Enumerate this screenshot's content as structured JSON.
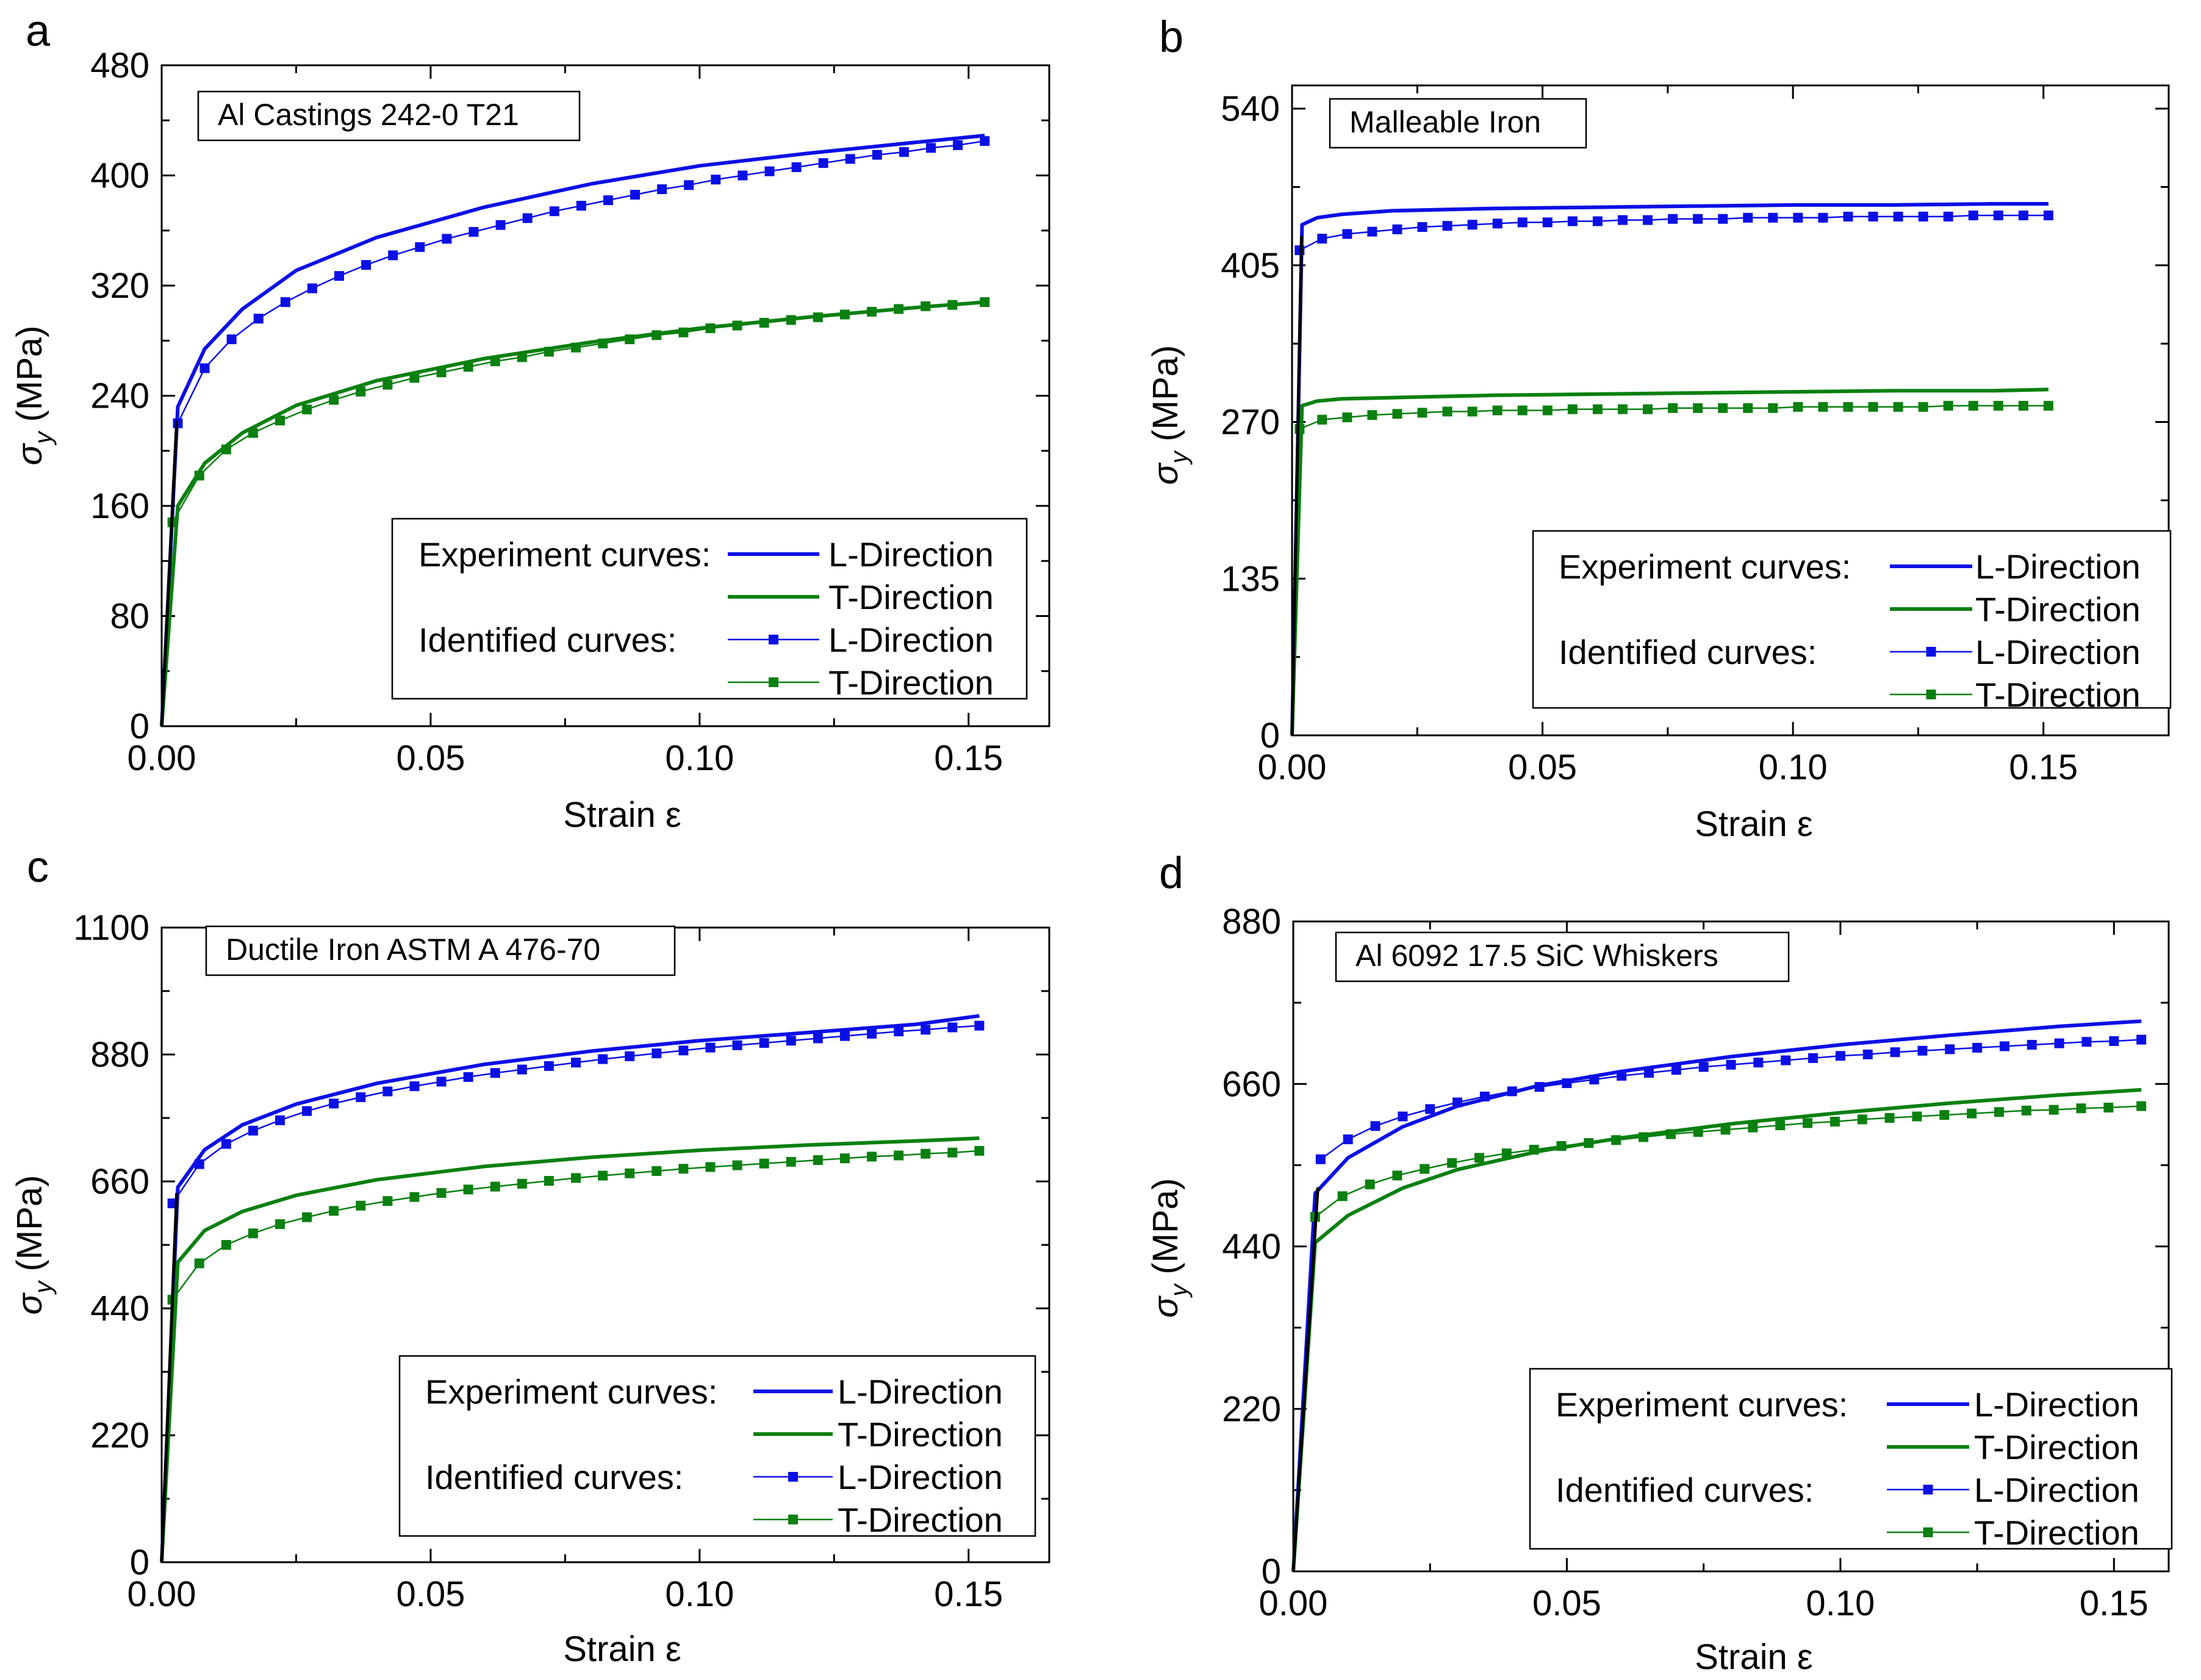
{
  "figure": {
    "panels": [
      "a",
      "b",
      "c",
      "d"
    ]
  },
  "colors": {
    "l_direction": "#0b0fe6",
    "t_direction": "#0a8010",
    "elastic": "#000000",
    "axis": "#000000"
  },
  "legend_labels": {
    "experiment": "Experiment curves:",
    "identified": "Identified curves:",
    "l_dir": "L-Direction",
    "t_dir": "T-Direction"
  },
  "chart_data": [
    {
      "panel": "a",
      "type": "line",
      "sample_label": "Al Castings 242-0 T21",
      "xlabel": "Strain ε",
      "ylabel": "σ_y (MPa)",
      "xlim": [
        0,
        0.165
      ],
      "ylim": [
        0,
        480
      ],
      "xticks": [
        0.0,
        0.05,
        0.1,
        0.15
      ],
      "xtick_labels": [
        "0.00",
        "0.05",
        "0.10",
        "0.15"
      ],
      "yticks": [
        0,
        80,
        160,
        240,
        320,
        400,
        480
      ],
      "ytick_labels": [
        "0",
        "80",
        "160",
        "240",
        "320",
        "400",
        "480"
      ],
      "series": [
        {
          "name": "Experiment L-Direction",
          "kind": "experiment",
          "color_key": "l_direction",
          "x": [
            0.0,
            0.003,
            0.008,
            0.015,
            0.025,
            0.04,
            0.06,
            0.08,
            0.1,
            0.12,
            0.14,
            0.153
          ],
          "y": [
            0,
            232,
            274,
            303,
            331,
            355,
            377,
            394,
            407,
            416,
            424,
            429
          ]
        },
        {
          "name": "Experiment T-Direction",
          "kind": "experiment",
          "color_key": "t_direction",
          "x": [
            0.0,
            0.003,
            0.008,
            0.015,
            0.025,
            0.04,
            0.06,
            0.08,
            0.1,
            0.12,
            0.14,
            0.153
          ],
          "y": [
            0,
            160,
            191,
            213,
            233,
            251,
            267,
            279,
            289,
            297,
            304,
            308
          ]
        },
        {
          "name": "Identified L-Direction",
          "kind": "identified",
          "color_key": "l_direction",
          "x": [
            0.003,
            0.008,
            0.013,
            0.018,
            0.023,
            0.028,
            0.033,
            0.038,
            0.043,
            0.048,
            0.053,
            0.058,
            0.063,
            0.068,
            0.073,
            0.078,
            0.083,
            0.088,
            0.093,
            0.098,
            0.103,
            0.108,
            0.113,
            0.118,
            0.123,
            0.128,
            0.133,
            0.138,
            0.143,
            0.148,
            0.153
          ],
          "y": [
            220,
            260,
            281,
            296,
            308,
            318,
            327,
            335,
            342,
            348,
            354,
            359,
            364,
            369,
            374,
            378,
            382,
            386,
            390,
            393,
            397,
            400,
            403,
            406,
            409,
            412,
            415,
            417,
            420,
            422,
            425
          ]
        },
        {
          "name": "Identified T-Direction",
          "kind": "identified",
          "color_key": "t_direction",
          "x": [
            0.002,
            0.007,
            0.012,
            0.017,
            0.022,
            0.027,
            0.032,
            0.037,
            0.042,
            0.047,
            0.052,
            0.057,
            0.062,
            0.067,
            0.072,
            0.077,
            0.082,
            0.087,
            0.092,
            0.097,
            0.102,
            0.107,
            0.112,
            0.117,
            0.122,
            0.127,
            0.132,
            0.137,
            0.142,
            0.147,
            0.153
          ],
          "y": [
            148,
            182,
            201,
            213,
            222,
            230,
            237,
            243,
            248,
            253,
            257,
            261,
            265,
            268,
            272,
            275,
            278,
            281,
            284,
            286,
            289,
            291,
            293,
            295,
            297,
            299,
            301,
            303,
            305,
            306,
            308
          ]
        },
        {
          "name": "Elastic",
          "kind": "elastic",
          "color_key": "elastic",
          "x": [
            0.0,
            0.0028
          ],
          "y": [
            0,
            222
          ]
        }
      ]
    },
    {
      "panel": "b",
      "type": "line",
      "sample_label": "Malleable Iron",
      "xlabel": "Strain ε",
      "ylabel": "σ_y (MPa)",
      "xlim": [
        0,
        0.175
      ],
      "ylim": [
        0,
        560
      ],
      "xticks": [
        0.0,
        0.05,
        0.1,
        0.15
      ],
      "xtick_labels": [
        "0.00",
        "0.05",
        "0.10",
        "0.15"
      ],
      "yticks": [
        0,
        135,
        270,
        405,
        540
      ],
      "ytick_labels": [
        "0",
        "135",
        "270",
        "405",
        "540"
      ],
      "series": [
        {
          "name": "Experiment L-Direction",
          "kind": "experiment",
          "color_key": "l_direction",
          "x": [
            0.0,
            0.002,
            0.005,
            0.01,
            0.02,
            0.04,
            0.06,
            0.08,
            0.1,
            0.12,
            0.14,
            0.151
          ],
          "y": [
            0,
            440,
            446,
            449,
            452,
            454,
            455,
            456,
            457,
            457,
            458,
            458
          ]
        },
        {
          "name": "Experiment T-Direction",
          "kind": "experiment",
          "color_key": "t_direction",
          "x": [
            0.0,
            0.002,
            0.005,
            0.01,
            0.02,
            0.04,
            0.06,
            0.08,
            0.1,
            0.12,
            0.14,
            0.151
          ],
          "y": [
            0,
            284,
            288,
            290,
            291,
            293,
            294,
            295,
            296,
            297,
            297,
            298
          ]
        },
        {
          "name": "Identified L-Direction",
          "kind": "identified",
          "color_key": "l_direction",
          "x": [
            0.0015,
            0.006,
            0.011,
            0.016,
            0.021,
            0.026,
            0.031,
            0.036,
            0.041,
            0.046,
            0.051,
            0.056,
            0.061,
            0.066,
            0.071,
            0.076,
            0.081,
            0.086,
            0.091,
            0.096,
            0.101,
            0.106,
            0.111,
            0.116,
            0.121,
            0.126,
            0.131,
            0.136,
            0.141,
            0.146,
            0.151
          ],
          "y": [
            418,
            428,
            432,
            434,
            436,
            438,
            439,
            440,
            441,
            442,
            442,
            443,
            443,
            444,
            444,
            445,
            445,
            445,
            446,
            446,
            446,
            446,
            447,
            447,
            447,
            447,
            447,
            448,
            448,
            448,
            448
          ]
        },
        {
          "name": "Identified T-Direction",
          "kind": "identified",
          "color_key": "t_direction",
          "x": [
            0.0015,
            0.006,
            0.011,
            0.016,
            0.021,
            0.026,
            0.031,
            0.036,
            0.041,
            0.046,
            0.051,
            0.056,
            0.061,
            0.066,
            0.071,
            0.076,
            0.081,
            0.086,
            0.091,
            0.096,
            0.101,
            0.106,
            0.111,
            0.116,
            0.121,
            0.126,
            0.131,
            0.136,
            0.141,
            0.146,
            0.151
          ],
          "y": [
            264,
            272,
            274,
            276,
            277,
            278,
            279,
            279,
            280,
            280,
            280,
            281,
            281,
            281,
            281,
            282,
            282,
            282,
            282,
            282,
            283,
            283,
            283,
            283,
            283,
            283,
            284,
            284,
            284,
            284,
            284
          ]
        },
        {
          "name": "Elastic",
          "kind": "elastic",
          "color_key": "elastic",
          "x": [
            0.0,
            0.0019
          ],
          "y": [
            0,
            430
          ]
        }
      ]
    },
    {
      "panel": "c",
      "type": "line",
      "sample_label": "Ductile Iron ASTM A 476-70",
      "xlabel": "Strain ε",
      "ylabel": "σ_y (MPa)",
      "xlim": [
        0,
        0.165
      ],
      "ylim": [
        0,
        1100
      ],
      "xticks": [
        0.0,
        0.05,
        0.1,
        0.15
      ],
      "xtick_labels": [
        "0.00",
        "0.05",
        "0.10",
        "0.15"
      ],
      "yticks": [
        0,
        220,
        440,
        660,
        880,
        1100
      ],
      "ytick_labels": [
        "0",
        "220",
        "440",
        "660",
        "880",
        "1100"
      ],
      "series": [
        {
          "name": "Experiment L-Direction",
          "kind": "experiment",
          "color_key": "l_direction",
          "x": [
            0.0,
            0.003,
            0.008,
            0.015,
            0.025,
            0.04,
            0.06,
            0.08,
            0.1,
            0.12,
            0.14,
            0.152
          ],
          "y": [
            0,
            650,
            715,
            758,
            794,
            830,
            863,
            886,
            904,
            918,
            932,
            947
          ]
        },
        {
          "name": "Experiment T-Direction",
          "kind": "experiment",
          "color_key": "t_direction",
          "x": [
            0.0,
            0.003,
            0.008,
            0.015,
            0.025,
            0.04,
            0.06,
            0.08,
            0.1,
            0.12,
            0.14,
            0.152
          ],
          "y": [
            0,
            520,
            575,
            608,
            636,
            663,
            686,
            702,
            714,
            723,
            730,
            735
          ]
        },
        {
          "name": "Identified L-Direction",
          "kind": "identified",
          "color_key": "l_direction",
          "x": [
            0.002,
            0.007,
            0.012,
            0.017,
            0.022,
            0.027,
            0.032,
            0.037,
            0.042,
            0.047,
            0.052,
            0.057,
            0.062,
            0.067,
            0.072,
            0.077,
            0.082,
            0.087,
            0.092,
            0.097,
            0.102,
            0.107,
            0.112,
            0.117,
            0.122,
            0.127,
            0.132,
            0.137,
            0.142,
            0.147,
            0.152
          ],
          "y": [
            622,
            690,
            725,
            748,
            766,
            782,
            795,
            806,
            816,
            825,
            833,
            841,
            848,
            854,
            860,
            866,
            872,
            877,
            882,
            887,
            892,
            896,
            900,
            904,
            908,
            912,
            916,
            920,
            923,
            927,
            930
          ]
        },
        {
          "name": "Identified T-Direction",
          "kind": "identified",
          "color_key": "t_direction",
          "x": [
            0.002,
            0.007,
            0.012,
            0.017,
            0.022,
            0.027,
            0.032,
            0.037,
            0.042,
            0.047,
            0.052,
            0.057,
            0.062,
            0.067,
            0.072,
            0.077,
            0.082,
            0.087,
            0.092,
            0.097,
            0.102,
            0.107,
            0.112,
            0.117,
            0.122,
            0.127,
            0.132,
            0.137,
            0.142,
            0.147,
            0.152
          ],
          "y": [
            455,
            518,
            550,
            570,
            586,
            598,
            609,
            618,
            626,
            633,
            640,
            646,
            651,
            656,
            661,
            666,
            670,
            674,
            678,
            682,
            685,
            688,
            691,
            694,
            697,
            700,
            703,
            705,
            708,
            710,
            713
          ]
        },
        {
          "name": "Elastic",
          "kind": "elastic",
          "color_key": "elastic",
          "x": [
            0.0,
            0.0028
          ],
          "y": [
            0,
            640
          ]
        }
      ]
    },
    {
      "panel": "d",
      "type": "line",
      "sample_label": "Al 6092 17.5 SiC Whiskers",
      "xlabel": "Strain ε",
      "ylabel": "σ_y (MPa)",
      "xlim": [
        0,
        0.16
      ],
      "ylim": [
        0,
        880
      ],
      "xticks": [
        0.0,
        0.05,
        0.1,
        0.15
      ],
      "xtick_labels": [
        "0.00",
        "0.05",
        "0.10",
        "0.15"
      ],
      "yticks": [
        0,
        220,
        440,
        660,
        880
      ],
      "ytick_labels": [
        "0",
        "220",
        "440",
        "660",
        "880"
      ],
      "series": [
        {
          "name": "Experiment L-Direction",
          "kind": "experiment",
          "color_key": "l_direction",
          "x": [
            0.0,
            0.004,
            0.01,
            0.02,
            0.03,
            0.045,
            0.06,
            0.08,
            0.1,
            0.12,
            0.14,
            0.155
          ],
          "y": [
            0,
            512,
            560,
            602,
            630,
            658,
            677,
            697,
            713,
            726,
            738,
            745
          ]
        },
        {
          "name": "Experiment T-Direction",
          "kind": "experiment",
          "color_key": "t_direction",
          "x": [
            0.0,
            0.004,
            0.01,
            0.02,
            0.03,
            0.045,
            0.06,
            0.08,
            0.1,
            0.12,
            0.14,
            0.155
          ],
          "y": [
            0,
            445,
            482,
            519,
            544,
            569,
            587,
            606,
            621,
            634,
            645,
            652
          ]
        },
        {
          "name": "Identified L-Direction",
          "kind": "identified",
          "color_key": "l_direction",
          "x": [
            0.005,
            0.01,
            0.015,
            0.02,
            0.025,
            0.03,
            0.035,
            0.04,
            0.045,
            0.05,
            0.055,
            0.06,
            0.065,
            0.07,
            0.075,
            0.08,
            0.085,
            0.09,
            0.095,
            0.1,
            0.105,
            0.11,
            0.115,
            0.12,
            0.125,
            0.13,
            0.135,
            0.14,
            0.145,
            0.15,
            0.155
          ],
          "y": [
            558,
            585,
            603,
            616,
            626,
            635,
            643,
            650,
            656,
            661,
            666,
            671,
            675,
            679,
            683,
            686,
            689,
            692,
            695,
            698,
            700,
            703,
            705,
            707,
            709,
            711,
            713,
            715,
            717,
            718,
            720
          ]
        },
        {
          "name": "Identified T-Direction",
          "kind": "identified",
          "color_key": "t_direction",
          "x": [
            0.004,
            0.009,
            0.014,
            0.019,
            0.024,
            0.029,
            0.034,
            0.039,
            0.044,
            0.049,
            0.054,
            0.059,
            0.064,
            0.069,
            0.074,
            0.079,
            0.084,
            0.089,
            0.094,
            0.099,
            0.104,
            0.109,
            0.114,
            0.119,
            0.124,
            0.129,
            0.134,
            0.139,
            0.144,
            0.149,
            0.155
          ],
          "y": [
            480,
            508,
            524,
            536,
            545,
            553,
            560,
            566,
            571,
            576,
            580,
            584,
            588,
            592,
            595,
            598,
            601,
            604,
            607,
            609,
            612,
            614,
            616,
            618,
            620,
            622,
            624,
            625,
            627,
            628,
            630
          ]
        },
        {
          "name": "Elastic",
          "kind": "elastic",
          "color_key": "elastic",
          "x": [
            0.0,
            0.0045
          ],
          "y": [
            0,
            520
          ]
        }
      ]
    }
  ]
}
